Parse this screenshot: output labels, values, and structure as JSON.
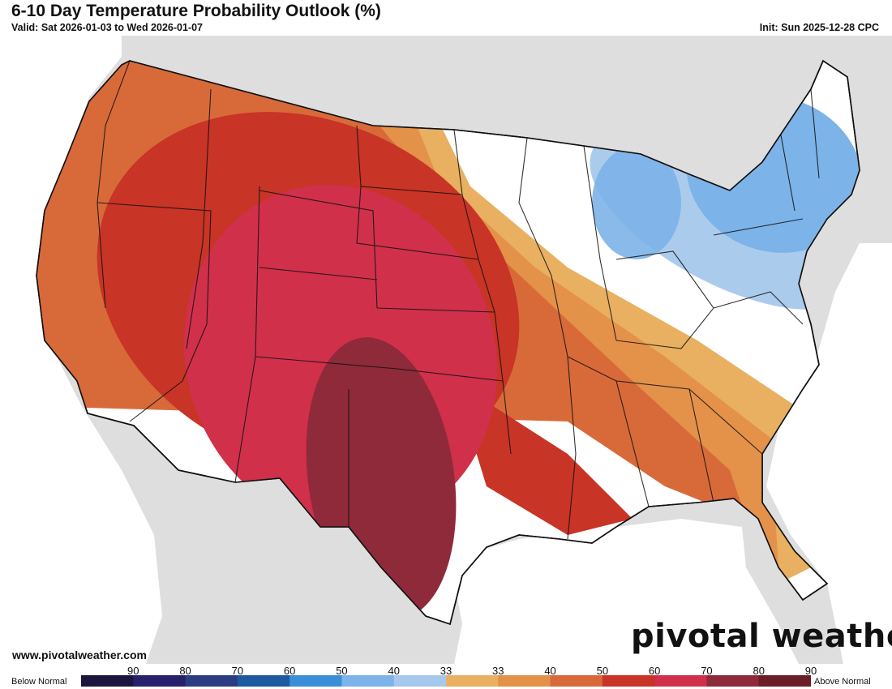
{
  "header": {
    "title": "6-10 Day Temperature Probability Outlook (%)",
    "valid": "Valid: Sat 2026-01-03 to Wed 2026-01-07",
    "init": "Init: Sun 2025-12-28 CPC"
  },
  "footer": {
    "url": "www.pivotalweather.com",
    "brand": "pivotal weather"
  },
  "legend": {
    "below_label": "Below Normal",
    "above_label": "Above Normal",
    "ticks": [
      "90",
      "80",
      "70",
      "60",
      "50",
      "40",
      "33",
      "33",
      "40",
      "50",
      "60",
      "70",
      "80",
      "90"
    ],
    "colors": [
      "#1c1540",
      "#27206a",
      "#2a3d82",
      "#1f5aa0",
      "#3a8fd8",
      "#7cb3e8",
      "#a6c8ec",
      "#e8b060",
      "#e4914a",
      "#d86a3a",
      "#c83426",
      "#d0304a",
      "#8e2a3a",
      "#6a1e28"
    ]
  },
  "map": {
    "highlighted_places": [
      {
        "name": "Texas",
        "category": "90 above normal"
      },
      {
        "name": "New England",
        "category": "50 below normal"
      },
      {
        "name": "Michigan",
        "category": "40 below normal"
      }
    ]
  }
}
